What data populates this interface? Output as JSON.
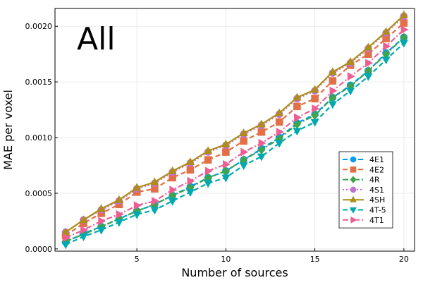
{
  "chart_data": {
    "type": "line",
    "title": "",
    "annotation": "All",
    "xlabel": "Number of sources",
    "ylabel": "MAE per voxel",
    "xlim": [
      0.4,
      20.6
    ],
    "ylim": [
      -2e-05,
      0.00216
    ],
    "xticks": [
      5,
      10,
      15,
      20
    ],
    "xtick_labels": [
      "5",
      "10",
      "15",
      "20"
    ],
    "yticks": [
      0,
      0.0005,
      0.001,
      0.0015,
      0.002
    ],
    "ytick_labels": [
      "0.0000",
      "0.0005",
      "0.0010",
      "0.0015",
      "0.0020"
    ],
    "grid": true,
    "legend_position": "bottom-right",
    "x": [
      1,
      2,
      3,
      4,
      5,
      6,
      7,
      8,
      9,
      10,
      11,
      12,
      13,
      14,
      15,
      16,
      17,
      18,
      19,
      20
    ],
    "series": [
      {
        "name": "4E1",
        "color": "#009AFA",
        "marker": "circle",
        "line": "dash",
        "values": [
          6e-05,
          0.00014,
          0.0002,
          0.00027,
          0.00034,
          0.0004,
          0.00048,
          0.00056,
          0.00064,
          0.0007,
          0.0008,
          0.0009,
          0.001,
          0.00113,
          0.00121,
          0.00136,
          0.00147,
          0.0016,
          0.00176,
          0.0019
        ]
      },
      {
        "name": "4E2",
        "color": "#E36F47",
        "marker": "square",
        "line": "dash",
        "values": [
          0.00012,
          0.00023,
          0.00032,
          0.0004,
          0.00051,
          0.00054,
          0.00064,
          0.00071,
          0.0008,
          0.00087,
          0.00097,
          0.00105,
          0.00114,
          0.00128,
          0.00135,
          0.00151,
          0.00165,
          0.00175,
          0.00189,
          0.00203
        ]
      },
      {
        "name": "4R",
        "color": "#3EA44E",
        "marker": "diamond",
        "line": "dashdot",
        "values": [
          7e-05,
          0.00013,
          0.0002,
          0.00027,
          0.00034,
          0.0004,
          0.00048,
          0.00055,
          0.00064,
          0.0007,
          0.0008,
          0.00089,
          0.00099,
          0.00112,
          0.0012,
          0.00136,
          0.00146,
          0.0016,
          0.00175,
          0.0019
        ]
      },
      {
        "name": "4S1",
        "color": "#C371D2",
        "marker": "circle",
        "line": "dot",
        "values": [
          0.00015,
          0.00026,
          0.00035,
          0.00043,
          0.00054,
          0.00059,
          0.00069,
          0.00077,
          0.00087,
          0.00093,
          0.00103,
          0.00111,
          0.00121,
          0.00135,
          0.00142,
          0.00158,
          0.00167,
          0.0018,
          0.00194,
          0.00209
        ]
      },
      {
        "name": "4SH",
        "color": "#AC8E18",
        "marker": "triangle-up",
        "line": "solid",
        "values": [
          0.00015,
          0.00026,
          0.00036,
          0.00044,
          0.00055,
          0.0006,
          0.0007,
          0.00078,
          0.00088,
          0.00094,
          0.00104,
          0.00112,
          0.00122,
          0.00136,
          0.00143,
          0.00159,
          0.00168,
          0.00181,
          0.00195,
          0.0021
        ]
      },
      {
        "name": "4T-5",
        "color": "#00A9AD",
        "marker": "triangle-down",
        "line": "dash",
        "values": [
          4e-05,
          0.00011,
          0.00017,
          0.00024,
          0.00031,
          0.00035,
          0.00043,
          0.00051,
          0.00059,
          0.00064,
          0.00075,
          0.00083,
          0.00095,
          0.00106,
          0.00114,
          0.0013,
          0.00142,
          0.00155,
          0.0017,
          0.00185
        ]
      },
      {
        "name": "4T1",
        "color": "#ED5E93",
        "marker": "triangle-right",
        "line": "dashdot",
        "values": [
          0.0001,
          0.00017,
          0.00025,
          0.00031,
          0.00039,
          0.00043,
          0.00053,
          0.00061,
          0.0007,
          0.00076,
          0.00087,
          0.00095,
          0.00105,
          0.00118,
          0.00126,
          0.00142,
          0.00155,
          0.00167,
          0.00182,
          0.00197
        ]
      }
    ]
  }
}
